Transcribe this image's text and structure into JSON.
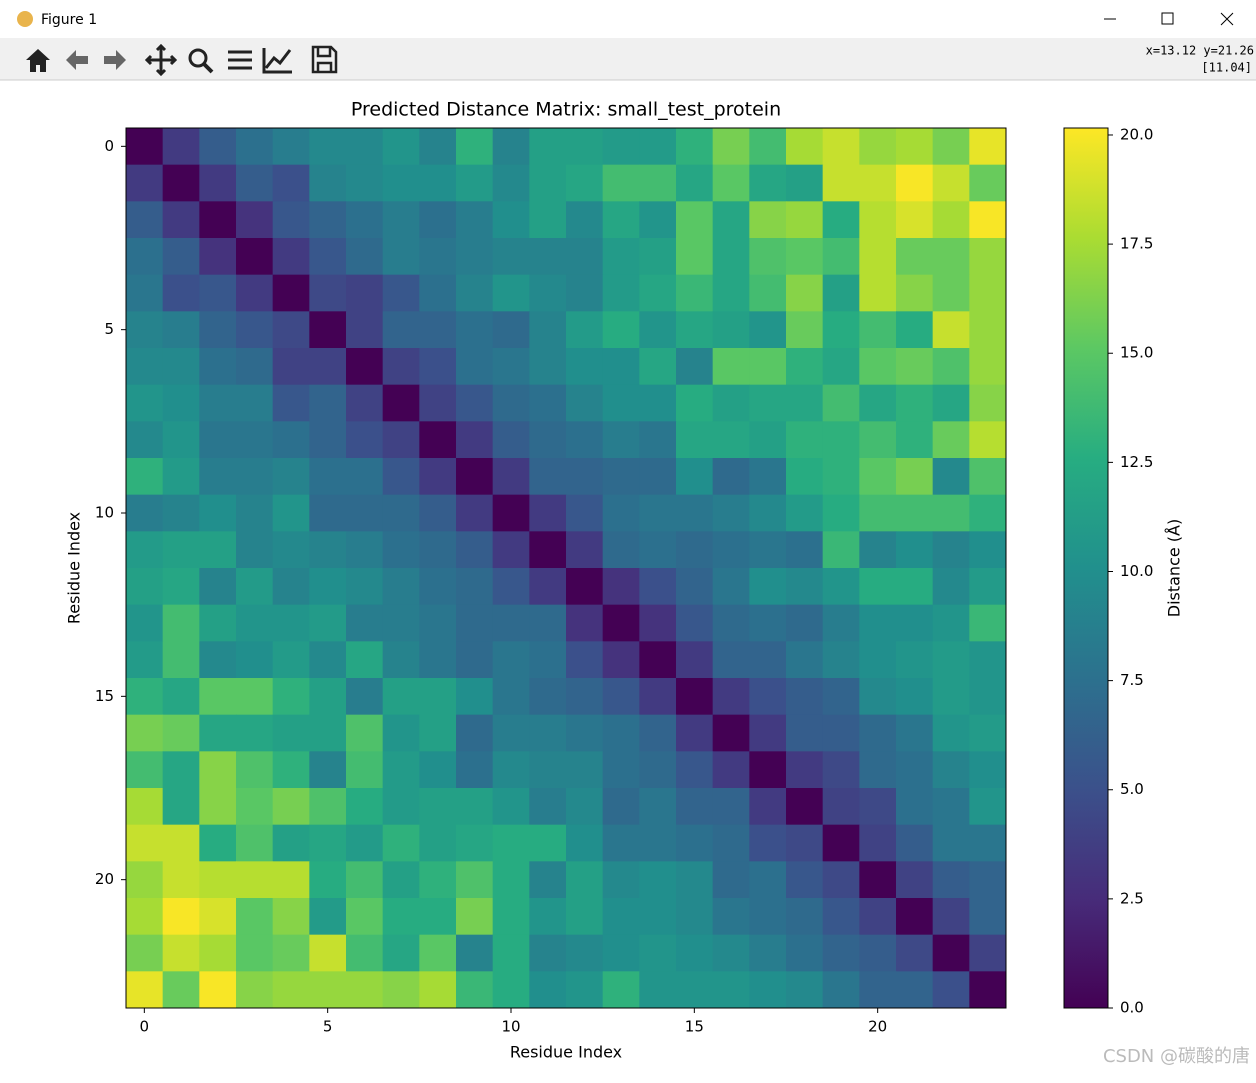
{
  "window": {
    "title": "Figure 1",
    "coords": "x=13.12 y=21.26",
    "coords_value": "[11.04]",
    "watermark": "CSDN @碳酸的唐"
  },
  "chart_data": {
    "type": "heatmap",
    "title": "Predicted Distance Matrix: small_test_protein",
    "x_label": "Residue Index",
    "y_label": "Residue Index",
    "colorbar_label": "Distance (Å)",
    "xlim": [
      -0.5,
      23.5
    ],
    "ylim": [
      23.5,
      -0.5
    ],
    "xticks": [
      0,
      5,
      10,
      15,
      20
    ],
    "yticks": [
      0,
      5,
      10,
      15,
      20
    ],
    "clim": [
      0,
      20.16
    ],
    "cticks": [
      {
        "value": 0,
        "label": "0.0"
      },
      2.5,
      {
        "value": 5,
        "label": "5.0"
      },
      7.5,
      {
        "value": 10,
        "label": "10.0"
      },
      12.5,
      {
        "value": 15,
        "label": "15.0"
      },
      17.5,
      {
        "value": 20,
        "label": "20.0"
      }
    ],
    "colormap": [
      "#440154",
      "#472c7a",
      "#3b518b",
      "#2c718e",
      "#21908d",
      "#27ad81",
      "#5cc863",
      "#aadc32",
      "#fde725"
    ],
    "z": [
      [
        0,
        3.5,
        6,
        7.5,
        8.5,
        9.5,
        9.5,
        10.5,
        9,
        13,
        9,
        11.5,
        11.5,
        11,
        11,
        13,
        16,
        14,
        17.5,
        18.5,
        17,
        17.5,
        16,
        19.5
      ],
      [
        3.5,
        0,
        3.5,
        6,
        5,
        9,
        9.5,
        10,
        10,
        11,
        9.5,
        11.5,
        12,
        14,
        14,
        12,
        15,
        12,
        11.5,
        18.5,
        18.5,
        20,
        18.5,
        15.5
      ],
      [
        6,
        3.5,
        0,
        3,
        5.5,
        6.5,
        7.5,
        8.5,
        7.5,
        8.5,
        10,
        11.5,
        9.5,
        12,
        10.5,
        15,
        12,
        16.5,
        17,
        12.5,
        18,
        19,
        17.5,
        20
      ],
      [
        7.5,
        6,
        3,
        0,
        3.5,
        5.5,
        7,
        8.5,
        8,
        8.5,
        9,
        9,
        9,
        11,
        11.5,
        15,
        12,
        14.5,
        15,
        14,
        18,
        15.5,
        15.5,
        17
      ],
      [
        8,
        5,
        5.5,
        3.5,
        0,
        4.5,
        4,
        5.5,
        7.5,
        9,
        10.5,
        9.5,
        9,
        11,
        12,
        13.5,
        12,
        14,
        16.5,
        11.5,
        18,
        16.5,
        15.5,
        17
      ],
      [
        9,
        8.5,
        6.5,
        5.5,
        4.5,
        0,
        4,
        6.5,
        6.5,
        7.5,
        7,
        9,
        11,
        12.5,
        10.5,
        12,
        11.5,
        10.5,
        15.5,
        12.5,
        14,
        12.5,
        18.5,
        17
      ],
      [
        9.5,
        9.5,
        7.5,
        7,
        4,
        4,
        0,
        4,
        5,
        7.5,
        8,
        9,
        10,
        10,
        12,
        9,
        15,
        15,
        13,
        12,
        15,
        15.5,
        14.5,
        17
      ],
      [
        10.5,
        10,
        8.5,
        8.5,
        5.5,
        6.5,
        4,
        0,
        4,
        5.5,
        7,
        7.5,
        9,
        10,
        10,
        12.5,
        11.5,
        12,
        12,
        14,
        12,
        13,
        12,
        16.5
      ],
      [
        9.5,
        10.5,
        8,
        8,
        7.5,
        6.5,
        5,
        4,
        0,
        3.5,
        6,
        7,
        7.5,
        8.5,
        8,
        12,
        12,
        11.5,
        13,
        13,
        14,
        13,
        15.5,
        18
      ],
      [
        13,
        11,
        8.5,
        8.5,
        9,
        7.5,
        7.5,
        5.5,
        3.5,
        0,
        3.5,
        6.5,
        6.5,
        7,
        7,
        10,
        7,
        8,
        12.5,
        13,
        15,
        16,
        9.5,
        14.5
      ],
      [
        8.5,
        9,
        10,
        9,
        10.5,
        7,
        7,
        7,
        6,
        3.5,
        0,
        3.5,
        5.5,
        7.5,
        8,
        8,
        8.5,
        9.5,
        11,
        12.5,
        14,
        14,
        14,
        13
      ],
      [
        11,
        11.5,
        11.5,
        9,
        9.5,
        9,
        8.5,
        7.5,
        7,
        6,
        3.5,
        0,
        3.5,
        7,
        7.5,
        7,
        7.5,
        8,
        7.5,
        13.5,
        9,
        10,
        9,
        10
      ],
      [
        11.5,
        12,
        9,
        11,
        9,
        10,
        9.5,
        8.5,
        7.5,
        7,
        5.5,
        3.5,
        0,
        3,
        5,
        6.5,
        8,
        10,
        9.5,
        10.5,
        12.5,
        12.5,
        9.5,
        11
      ],
      [
        10.5,
        14,
        11.5,
        10.5,
        10.5,
        11,
        8.5,
        8.5,
        8,
        7,
        7,
        7,
        3,
        0,
        3,
        5.5,
        7,
        7.5,
        7,
        8.5,
        10,
        10,
        10.5,
        13.5
      ],
      [
        11,
        14,
        9.5,
        10,
        11,
        9.5,
        12,
        9,
        8,
        7,
        8,
        7.5,
        5,
        3,
        0,
        3.5,
        6.5,
        6.5,
        8,
        9,
        10,
        10.5,
        11,
        10.5
      ],
      [
        13,
        12,
        15,
        15,
        13,
        11.5,
        8.5,
        11.5,
        11.5,
        10,
        8,
        7,
        6.5,
        5.5,
        3.5,
        0,
        3.5,
        5,
        6,
        6.5,
        9.5,
        10,
        11,
        10.5
      ],
      [
        16,
        15.5,
        12,
        12,
        11.5,
        11.5,
        14.5,
        10.5,
        11.5,
        7,
        8.5,
        8.5,
        8,
        7.5,
        6.5,
        3.5,
        0,
        3.5,
        6,
        6,
        7,
        8,
        10.5,
        11
      ],
      [
        14,
        12,
        16.5,
        14.5,
        13,
        9,
        14,
        11,
        10,
        7.5,
        9.5,
        9,
        9,
        7.5,
        7,
        5.5,
        3.5,
        0,
        3.5,
        4.5,
        7,
        7.5,
        9,
        10
      ],
      [
        17.5,
        12,
        16.5,
        15,
        16,
        14.5,
        12.5,
        11,
        11.5,
        11.5,
        10.5,
        8.5,
        9.5,
        7,
        8,
        6.5,
        6.5,
        3.5,
        0,
        4,
        4.5,
        7.5,
        8,
        10.5
      ],
      [
        18.5,
        18.5,
        12.5,
        14.5,
        11.5,
        12,
        11,
        13,
        11.5,
        12,
        12.5,
        12.5,
        10,
        8,
        8,
        7.5,
        7,
        5,
        4.5,
        0,
        4,
        6,
        8,
        8
      ],
      [
        17,
        18.5,
        18,
        18,
        18,
        12.5,
        14,
        11.5,
        13,
        14.5,
        12.5,
        9,
        11.5,
        9.5,
        10,
        9.5,
        7,
        7.5,
        5.5,
        4.5,
        0,
        4,
        6,
        6.5
      ],
      [
        17.5,
        20,
        19,
        15,
        16.5,
        11,
        15,
        12.5,
        12.5,
        16,
        12.5,
        10.5,
        11.5,
        10,
        10,
        9.5,
        8,
        7.5,
        7,
        5.5,
        4,
        0,
        4,
        6.5
      ],
      [
        16,
        18.5,
        17.5,
        15,
        15.5,
        18.5,
        14,
        12,
        15,
        9,
        12.5,
        9,
        9.5,
        10,
        10.5,
        10,
        9.5,
        8.5,
        7.5,
        6.5,
        6,
        4.5,
        0,
        4
      ],
      [
        19.5,
        15.5,
        20,
        16.5,
        17,
        17,
        17,
        16.5,
        17.5,
        13.5,
        12.5,
        10,
        10.5,
        13,
        10.5,
        10.5,
        10.5,
        10,
        9.5,
        8,
        6.5,
        6.5,
        5,
        0
      ]
    ]
  }
}
